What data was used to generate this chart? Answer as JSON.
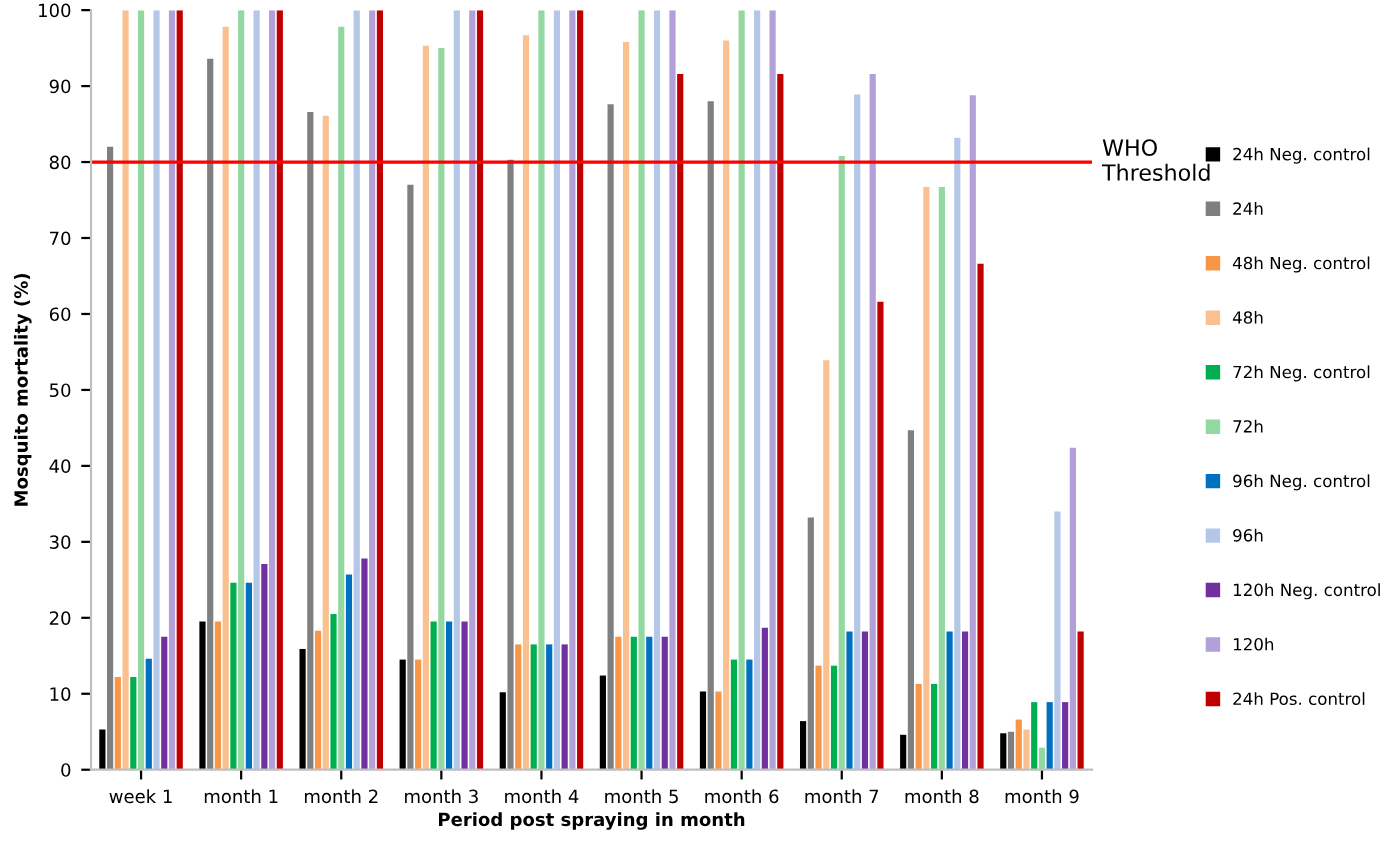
{
  "chart_data": {
    "type": "bar",
    "xlabel": "Period post spraying in month",
    "ylabel": "Mosquito mortality (%)",
    "categories": [
      "week 1",
      "month 1",
      "month 2",
      "month 3",
      "month 4",
      "month 5",
      "month 6",
      "month 7",
      "month 8",
      "month 9"
    ],
    "series": [
      {
        "name": "24h Neg. control",
        "color": "#000000",
        "values": [
          5.3,
          19.5,
          15.9,
          14.5,
          10.2,
          12.4,
          10.3,
          6.4,
          4.6,
          4.8
        ]
      },
      {
        "name": "24h",
        "color": "#7f7f7f",
        "values": [
          82,
          93.6,
          86.6,
          77,
          80.3,
          87.6,
          88,
          33.2,
          44.7,
          5.0
        ]
      },
      {
        "name": "48h Neg. control",
        "color": "#f79646",
        "values": [
          12.2,
          19.5,
          18.3,
          14.5,
          16.5,
          17.5,
          10.3,
          13.7,
          11.3,
          6.6
        ]
      },
      {
        "name": "48h",
        "color": "#fac090",
        "values": [
          100,
          97.8,
          86.1,
          95.3,
          96.7,
          95.8,
          96,
          53.9,
          76.7,
          5.3
        ]
      },
      {
        "name": "72h Neg. control",
        "color": "#00b050",
        "values": [
          12.2,
          24.6,
          20.5,
          19.5,
          16.5,
          17.5,
          14.5,
          13.7,
          11.3,
          8.9
        ]
      },
      {
        "name": "72h",
        "color": "#92d8a0",
        "values": [
          100,
          100,
          97.8,
          95,
          100,
          100,
          100,
          80.8,
          76.7,
          2.9
        ]
      },
      {
        "name": "96h Neg. control",
        "color": "#0070c0",
        "values": [
          14.6,
          24.6,
          25.7,
          19.5,
          16.5,
          17.5,
          14.5,
          18.2,
          18.2,
          8.9
        ]
      },
      {
        "name": "96h",
        "color": "#b4c7e7",
        "values": [
          100,
          100,
          100,
          100,
          100,
          100,
          100,
          88.9,
          83.2,
          34.0
        ]
      },
      {
        "name": "120h Neg. control",
        "color": "#7030a0",
        "values": [
          17.5,
          27.1,
          27.8,
          19.5,
          16.5,
          17.5,
          18.7,
          18.2,
          18.2,
          8.9
        ]
      },
      {
        "name": "120h",
        "color": "#b4a0d8",
        "values": [
          100,
          100,
          100,
          100,
          100,
          100,
          100,
          91.6,
          88.8,
          42.4
        ]
      },
      {
        "name": "24h Pos. control",
        "color": "#c00000",
        "values": [
          100,
          100,
          100,
          100,
          100,
          91.6,
          91.6,
          61.6,
          66.6,
          18.2
        ]
      }
    ],
    "ylim": [
      0,
      100
    ],
    "yticks": [
      0,
      10,
      20,
      30,
      40,
      50,
      60,
      70,
      80,
      90,
      100
    ],
    "grid": false,
    "legend": "right",
    "ref_lines": [
      {
        "axis": "y",
        "value": 80,
        "label": "WHO\nThreshold",
        "color": "#ff0000"
      }
    ]
  }
}
